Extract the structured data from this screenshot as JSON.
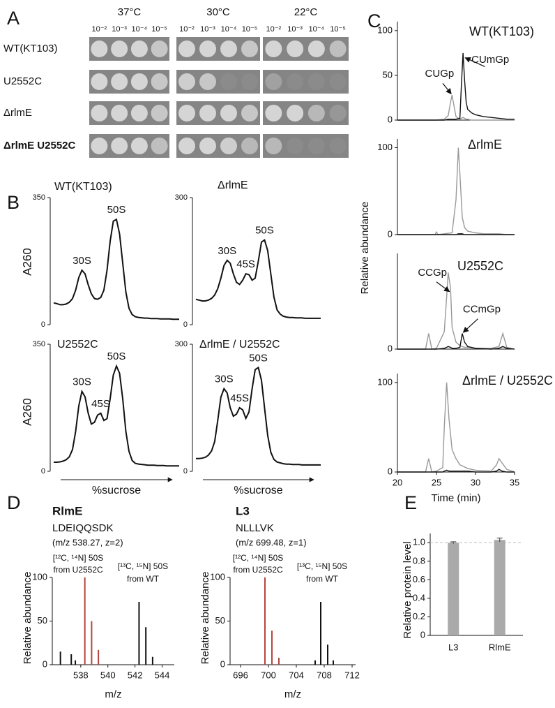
{
  "panel_labels": [
    "A",
    "B",
    "C",
    "D",
    "E"
  ],
  "panel_a": {
    "temperatures": [
      "37°C",
      "30°C",
      "22°C"
    ],
    "dilutions": [
      "10⁻²",
      "10⁻³",
      "10⁻⁴",
      "10⁻⁵"
    ],
    "strains": [
      "WT(KT103)",
      "U2552C",
      "ΔrlmE",
      "ΔrlmE U2552C"
    ]
  },
  "chart_data": [
    {
      "type": "line",
      "title": "WT(KT103)",
      "y_label": "A260",
      "ylim": [
        0,
        350
      ],
      "yticks": [
        0,
        350
      ],
      "series": [
        {
          "color": "#111111",
          "values": [
            60,
            58,
            55,
            55,
            57,
            62,
            72,
            95,
            130,
            150,
            140,
            110,
            85,
            72,
            70,
            75,
            95,
            150,
            230,
            285,
            290,
            250,
            170,
            90,
            45,
            28,
            22,
            20,
            19,
            18,
            18,
            17,
            17,
            17,
            16,
            16,
            16,
            16,
            15,
            15,
            15
          ]
        }
      ],
      "annotations": [
        "30S",
        "50S"
      ]
    },
    {
      "type": "line",
      "title": "ΔrlmE",
      "ylim": [
        0,
        300
      ],
      "yticks": [
        0,
        300
      ],
      "series": [
        {
          "color": "#111111",
          "values": [
            60,
            58,
            56,
            56,
            58,
            62,
            70,
            85,
            110,
            140,
            152,
            145,
            120,
            100,
            95,
            105,
            120,
            118,
            105,
            110,
            150,
            195,
            200,
            175,
            120,
            65,
            35,
            25,
            20,
            18,
            17,
            17,
            16,
            16,
            16,
            15,
            15,
            15,
            15,
            15,
            15
          ]
        }
      ],
      "annotations": [
        "30S",
        "45S",
        "50S"
      ]
    },
    {
      "type": "line",
      "title": "U2552C",
      "y_label": "A260",
      "x_label": "%sucrose",
      "ylim": [
        0,
        350
      ],
      "yticks": [
        0,
        350
      ],
      "series": [
        {
          "color": "#111111",
          "values": [
            25,
            25,
            26,
            28,
            32,
            40,
            60,
            110,
            180,
            220,
            205,
            160,
            130,
            135,
            155,
            160,
            140,
            145,
            200,
            265,
            290,
            270,
            200,
            110,
            55,
            30,
            22,
            20,
            19,
            18,
            17,
            17,
            17,
            16,
            16,
            16,
            15,
            15,
            15,
            15,
            15
          ]
        }
      ],
      "annotations": [
        "30S",
        "45S",
        "50S"
      ]
    },
    {
      "type": "line",
      "title": "ΔrlmE / U2552C",
      "x_label": "%sucrose",
      "ylim": [
        0,
        300
      ],
      "yticks": [
        0,
        300
      ],
      "series": [
        {
          "color": "#111111",
          "values": [
            30,
            30,
            31,
            33,
            38,
            48,
            70,
            120,
            175,
            195,
            185,
            150,
            130,
            135,
            150,
            145,
            125,
            140,
            195,
            240,
            245,
            215,
            150,
            85,
            45,
            28,
            22,
            20,
            18,
            17,
            17,
            16,
            16,
            16,
            15,
            15,
            15,
            15,
            15,
            15,
            15
          ]
        }
      ],
      "annotations": [
        "30S",
        "45S",
        "50S"
      ]
    },
    {
      "type": "line",
      "title": "WT(KT103)",
      "xlim": [
        20,
        35
      ],
      "ylim": [
        0,
        110
      ],
      "yticks": [
        0,
        50,
        100
      ],
      "x": [
        20,
        24,
        25,
        26,
        26.5,
        26.8,
        27,
        27.2,
        27.5,
        28,
        28.2,
        28.4,
        28.6,
        28.8,
        29,
        29.5,
        30,
        31,
        32,
        33,
        34,
        35
      ],
      "series": [
        {
          "color": "#999999",
          "values": [
            0,
            0,
            0,
            1,
            5,
            20,
            28,
            18,
            4,
            1,
            2,
            3,
            2,
            1,
            1,
            0,
            0,
            0,
            0,
            0,
            0,
            0
          ]
        },
        {
          "color": "#111111",
          "values": [
            0,
            0,
            0,
            0,
            1,
            1,
            1,
            1,
            1,
            2,
            40,
            75,
            45,
            20,
            12,
            8,
            6,
            4,
            3,
            2,
            1,
            1
          ]
        }
      ],
      "annotations": [
        {
          "text": "CUGp",
          "x": 27,
          "y": 28
        },
        {
          "text": "CUmGp",
          "x": 28.5,
          "y": 70
        }
      ]
    },
    {
      "type": "line",
      "title": "ΔrlmE",
      "y_label": "Relative abundance",
      "xlim": [
        20,
        35
      ],
      "ylim": [
        0,
        110
      ],
      "yticks": [
        0,
        100
      ],
      "x": [
        20,
        24,
        24.8,
        25,
        25.2,
        26,
        27,
        27.5,
        27.8,
        28,
        28.3,
        28.6,
        29,
        30,
        31,
        32,
        33,
        34,
        35
      ],
      "series": [
        {
          "color": "#999999",
          "values": [
            0,
            0,
            0,
            3,
            0,
            1,
            2,
            40,
            100,
            70,
            20,
            8,
            4,
            2,
            1,
            1,
            1,
            0,
            0
          ]
        },
        {
          "color": "#111111",
          "values": [
            0,
            0,
            0,
            0,
            0,
            0,
            0,
            0,
            1,
            1,
            1,
            0,
            0,
            0,
            0,
            0,
            0,
            0,
            0
          ]
        }
      ]
    },
    {
      "type": "line",
      "title": "U2552C",
      "xlim": [
        20,
        35
      ],
      "ylim": [
        0,
        110
      ],
      "yticks": [
        0
      ],
      "x": [
        20,
        23.6,
        24,
        24.4,
        25,
        26,
        26.3,
        26.5,
        26.8,
        27,
        27.5,
        28,
        28.3,
        28.6,
        29,
        30,
        32,
        33,
        33.5,
        34,
        35
      ],
      "series": [
        {
          "color": "#999999",
          "values": [
            0,
            0,
            18,
            0,
            1,
            20,
            60,
            88,
            70,
            25,
            8,
            4,
            3,
            2,
            2,
            1,
            1,
            3,
            18,
            2,
            0
          ]
        },
        {
          "color": "#111111",
          "values": [
            0,
            0,
            0,
            0,
            0,
            1,
            2,
            3,
            2,
            1,
            1,
            2,
            18,
            8,
            3,
            1,
            0,
            1,
            3,
            1,
            0
          ]
        }
      ],
      "annotations": [
        {
          "text": "CCGp",
          "x": 26.8,
          "y": 65
        },
        {
          "text": "CCmGp",
          "x": 28.3,
          "y": 18
        }
      ]
    },
    {
      "type": "line",
      "title": "ΔrlmE / U2552C",
      "x_label": "Time (min)",
      "xlim": [
        20,
        35
      ],
      "xticks": [
        20,
        25,
        30,
        35
      ],
      "ylim": [
        0,
        110
      ],
      "yticks": [
        0,
        100
      ],
      "x": [
        20,
        23.6,
        24,
        24.4,
        25,
        25.8,
        26,
        26.3,
        26.6,
        27,
        27.5,
        28,
        29,
        30,
        32,
        32.7,
        33,
        33.4,
        34,
        35
      ],
      "series": [
        {
          "color": "#999999",
          "values": [
            0,
            0,
            15,
            0,
            1,
            5,
            50,
            100,
            60,
            25,
            15,
            8,
            4,
            2,
            1,
            8,
            15,
            10,
            3,
            0
          ]
        },
        {
          "color": "#111111",
          "values": [
            0,
            0,
            0,
            0,
            0,
            0,
            1,
            2,
            1,
            1,
            1,
            1,
            1,
            0,
            0,
            1,
            3,
            1,
            0,
            0
          ]
        }
      ]
    },
    {
      "type": "stem",
      "title": "RlmE",
      "subtitle": "LDEIQQSDK",
      "note": "(m/z 538.27, z=2)",
      "x_label": "m/z",
      "y_label": "Relative abundance",
      "xlim": [
        535.9,
        544.9
      ],
      "xticks": [
        538,
        540,
        542,
        544
      ],
      "ylim": [
        0,
        100
      ],
      "yticks": [
        0,
        50,
        100
      ],
      "series": [
        {
          "color": "#b5443f",
          "x": [
            538.3,
            538.8,
            539.3
          ],
          "values": [
            100,
            50,
            17
          ],
          "labels": [
            "[¹²C, ¹⁴N] 50S",
            "from U2552C"
          ]
        },
        {
          "color": "#111111",
          "x": [
            536.5,
            537.3,
            537.6,
            542.3,
            542.8,
            543.3
          ],
          "values": [
            15,
            12,
            5,
            72,
            43,
            9
          ],
          "labels": [
            "[¹³C, ¹⁵N] 50S",
            "from WT"
          ]
        }
      ]
    },
    {
      "type": "stem",
      "title": "L3",
      "subtitle": "NLLLVK",
      "note": "(m/z 699.48, z=1)",
      "x_label": "m/z",
      "y_label": "Relative abundance",
      "xlim": [
        694.5,
        712.5
      ],
      "xticks": [
        696,
        700,
        704,
        708,
        712
      ],
      "ylim": [
        0,
        100
      ],
      "yticks": [
        0,
        50,
        100
      ],
      "series": [
        {
          "color": "#b5443f",
          "x": [
            699.5,
            700.5,
            701.5
          ],
          "values": [
            100,
            39,
            8
          ],
          "labels": [
            "[¹²C, ¹⁴N] 50S",
            "from U2552C"
          ]
        },
        {
          "color": "#111111",
          "x": [
            706.7,
            707.5,
            708.5,
            709.3
          ],
          "values": [
            5,
            72,
            23,
            5
          ],
          "labels": [
            "[¹³C, ¹⁵N] 50S",
            "from WT"
          ]
        }
      ]
    },
    {
      "type": "bar",
      "y_label": "Relative protein level",
      "categories": [
        "L3",
        "RlmE"
      ],
      "values": [
        1,
        1.03
      ],
      "errors": [
        0.01,
        0.02
      ],
      "color": "#aaaaaa",
      "ylim": [
        0,
        1.1
      ],
      "yticks": [
        0,
        0.2,
        0.4,
        0.6,
        0.8,
        {
          "value": 1,
          "label": "1.0"
        }
      ],
      "ref_line": 1
    }
  ]
}
